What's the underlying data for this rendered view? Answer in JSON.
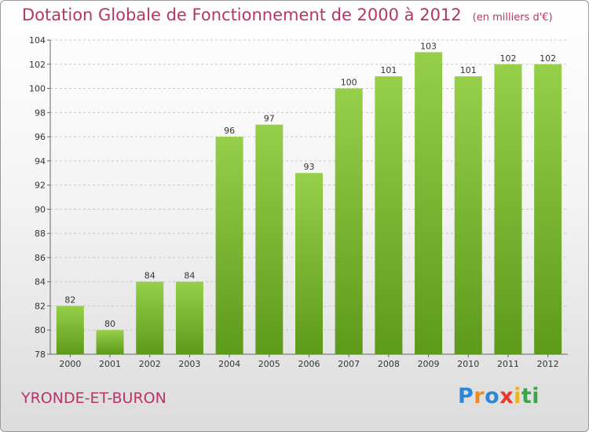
{
  "title": "Dotation Globale de Fonctionnement de 2000 à 2012",
  "unit": "(en milliers d'€)",
  "commune": "YRONDE-ET-BURON",
  "logo_letters": [
    "P",
    "r",
    "o",
    "x",
    "i",
    "ti"
  ],
  "colors": {
    "bar_top": "#96cf4a",
    "bar_bottom": "#5e9a1a",
    "title": "#b83468"
  },
  "chart_data": {
    "type": "bar",
    "title": "Dotation Globale de Fonctionnement de 2000 à 2012",
    "categories": [
      "2000",
      "2001",
      "2002",
      "2003",
      "2004",
      "2005",
      "2006",
      "2007",
      "2008",
      "2009",
      "2010",
      "2011",
      "2012"
    ],
    "values": [
      82,
      80,
      84,
      84,
      96,
      97,
      93,
      100,
      101,
      103,
      101,
      102,
      102
    ],
    "ylim": [
      78,
      104
    ],
    "yticks": [
      78,
      80,
      82,
      84,
      86,
      88,
      90,
      92,
      94,
      96,
      98,
      100,
      102,
      104
    ],
    "grid": true,
    "xlabel": "",
    "ylabel": ""
  }
}
